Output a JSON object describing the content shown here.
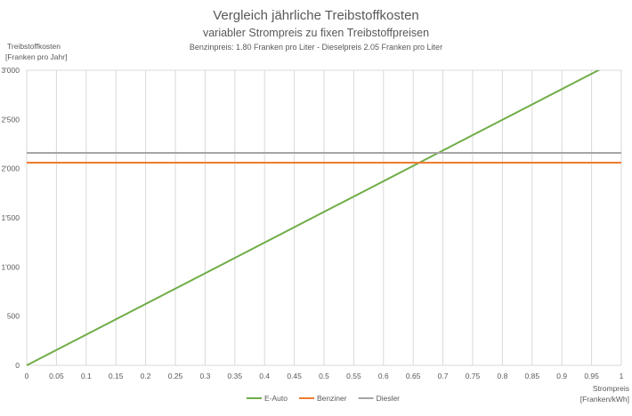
{
  "chart_data": {
    "type": "line",
    "title": "Vergleich jährliche Treibstoffkosten",
    "subtitle": "variabler Strompreis zu fixen Treibstoffpreisen",
    "subsubtitle": "Benzinpreis: 1.80 Franken pro Liter - Dieselpreis 2.05 Franken pro Liter",
    "ylabel": [
      "Treibstoffkosten",
      "[Franken pro Jahr]"
    ],
    "xlabel": [
      "Strompreis",
      "[Franken/kWh]"
    ],
    "xlim": [
      0,
      1
    ],
    "ylim": [
      0,
      3000
    ],
    "x_ticks": [
      "0",
      "0.05",
      "0.1",
      "0.15",
      "0.2",
      "0.25",
      "0.3",
      "0.35",
      "0.4",
      "0.45",
      "0.5",
      "0.55",
      "0.6",
      "0.65",
      "0.7",
      "0.75",
      "0.8",
      "0.85",
      "0.9",
      "0.95",
      "1"
    ],
    "y_ticks": [
      {
        "value": 0,
        "label": "0"
      },
      {
        "value": 500,
        "label": "500"
      },
      {
        "value": 1000,
        "label": "1'000"
      },
      {
        "value": 1500,
        "label": "1'500"
      },
      {
        "value": 2000,
        "label": "2'000"
      },
      {
        "value": 2500,
        "label": "2'500"
      },
      {
        "value": 3000,
        "label": "3'000"
      }
    ],
    "grid": "vertical",
    "legend_position": "bottom",
    "series": [
      {
        "name": "E-Auto",
        "color": "#70AD47",
        "x": [
          0,
          1
        ],
        "y": [
          0,
          3120
        ]
      },
      {
        "name": "Benziner",
        "color": "#ED7D31",
        "x": [
          0,
          1
        ],
        "y": [
          2060,
          2060
        ]
      },
      {
        "name": "Diesler",
        "color": "#A5A5A5",
        "x": [
          0,
          1
        ],
        "y": [
          2160,
          2160
        ]
      }
    ]
  }
}
